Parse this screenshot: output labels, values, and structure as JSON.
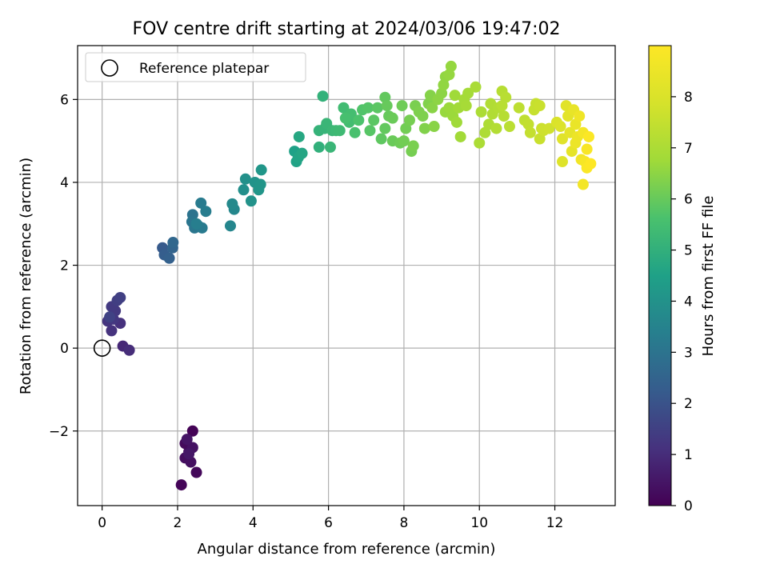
{
  "chart_data": {
    "type": "scatter",
    "title": "FOV centre drift starting at 2024/03/06 19:47:02",
    "xlabel": "Angular distance from reference (arcmin)",
    "ylabel": "Rotation from reference (arcmin)",
    "xlim": [
      -0.65,
      13.6
    ],
    "ylim": [
      -3.8,
      7.3
    ],
    "xticks": [
      0,
      2,
      4,
      6,
      8,
      10,
      12
    ],
    "yticks": [
      -2,
      0,
      2,
      4,
      6
    ],
    "grid": true,
    "legend": {
      "position": "top-left",
      "entries": [
        "Reference platepar"
      ]
    },
    "reference_point": {
      "x": 0,
      "y": 0
    },
    "colorbar": {
      "label": "Hours from first FF file",
      "min": 0,
      "max": 9,
      "ticks": [
        0,
        1,
        2,
        3,
        4,
        5,
        6,
        7,
        8
      ],
      "colormap": "viridis"
    },
    "points": [
      {
        "x": 2.4,
        "y": -2.0,
        "c": 0.05
      },
      {
        "x": 2.1,
        "y": -3.3,
        "c": 0.1
      },
      {
        "x": 2.5,
        "y": -3.0,
        "c": 0.15
      },
      {
        "x": 2.2,
        "y": -2.3,
        "c": 0.2
      },
      {
        "x": 2.3,
        "y": -2.5,
        "c": 0.25
      },
      {
        "x": 2.2,
        "y": -2.65,
        "c": 0.3
      },
      {
        "x": 2.35,
        "y": -2.75,
        "c": 0.35
      },
      {
        "x": 2.4,
        "y": -2.4,
        "c": 0.4
      },
      {
        "x": 2.25,
        "y": -2.2,
        "c": 0.45
      },
      {
        "x": 2.3,
        "y": -2.55,
        "c": 0.5
      },
      {
        "x": 0.55,
        "y": 0.05,
        "c": 0.9
      },
      {
        "x": 0.72,
        "y": -0.05,
        "c": 1.0
      },
      {
        "x": 0.48,
        "y": 0.6,
        "c": 1.1
      },
      {
        "x": 0.25,
        "y": 0.42,
        "c": 1.15
      },
      {
        "x": 0.15,
        "y": 0.65,
        "c": 1.2
      },
      {
        "x": 0.3,
        "y": 0.7,
        "c": 1.25
      },
      {
        "x": 0.35,
        "y": 0.9,
        "c": 1.3
      },
      {
        "x": 0.25,
        "y": 1.0,
        "c": 1.35
      },
      {
        "x": 0.4,
        "y": 1.15,
        "c": 1.45
      },
      {
        "x": 0.48,
        "y": 1.22,
        "c": 1.5
      },
      {
        "x": 0.2,
        "y": 0.75,
        "c": 1.55
      },
      {
        "x": 1.6,
        "y": 2.42,
        "c": 2.2
      },
      {
        "x": 1.65,
        "y": 2.25,
        "c": 2.3
      },
      {
        "x": 1.78,
        "y": 2.17,
        "c": 2.4
      },
      {
        "x": 1.87,
        "y": 2.42,
        "c": 2.5
      },
      {
        "x": 1.88,
        "y": 2.55,
        "c": 2.6
      },
      {
        "x": 2.4,
        "y": 3.22,
        "c": 3.0
      },
      {
        "x": 2.38,
        "y": 3.05,
        "c": 3.05
      },
      {
        "x": 2.45,
        "y": 2.9,
        "c": 3.1
      },
      {
        "x": 2.55,
        "y": 2.95,
        "c": 3.15
      },
      {
        "x": 2.65,
        "y": 2.9,
        "c": 3.2
      },
      {
        "x": 2.62,
        "y": 3.5,
        "c": 3.25
      },
      {
        "x": 2.75,
        "y": 3.3,
        "c": 3.3
      },
      {
        "x": 2.5,
        "y": 3.0,
        "c": 3.35
      },
      {
        "x": 3.4,
        "y": 2.95,
        "c": 3.6
      },
      {
        "x": 3.5,
        "y": 3.35,
        "c": 3.65
      },
      {
        "x": 3.45,
        "y": 3.48,
        "c": 3.7
      },
      {
        "x": 3.75,
        "y": 3.82,
        "c": 3.9
      },
      {
        "x": 3.8,
        "y": 4.08,
        "c": 3.95
      },
      {
        "x": 3.95,
        "y": 3.55,
        "c": 4.0
      },
      {
        "x": 4.05,
        "y": 4.0,
        "c": 4.05
      },
      {
        "x": 4.15,
        "y": 3.82,
        "c": 4.1
      },
      {
        "x": 4.2,
        "y": 3.95,
        "c": 4.1
      },
      {
        "x": 4.22,
        "y": 4.3,
        "c": 4.15
      },
      {
        "x": 5.1,
        "y": 4.75,
        "c": 4.5
      },
      {
        "x": 5.15,
        "y": 4.5,
        "c": 4.55
      },
      {
        "x": 5.2,
        "y": 4.6,
        "c": 4.6
      },
      {
        "x": 5.3,
        "y": 4.7,
        "c": 4.65
      },
      {
        "x": 5.22,
        "y": 5.1,
        "c": 4.7
      },
      {
        "x": 5.75,
        "y": 4.85,
        "c": 5.0
      },
      {
        "x": 5.85,
        "y": 6.08,
        "c": 5.05
      },
      {
        "x": 5.75,
        "y": 5.25,
        "c": 5.1
      },
      {
        "x": 5.9,
        "y": 5.3,
        "c": 5.15
      },
      {
        "x": 6.05,
        "y": 4.85,
        "c": 5.2
      },
      {
        "x": 5.95,
        "y": 5.42,
        "c": 5.2
      },
      {
        "x": 6.1,
        "y": 5.25,
        "c": 5.25
      },
      {
        "x": 6.2,
        "y": 5.25,
        "c": 5.3
      },
      {
        "x": 6.3,
        "y": 5.25,
        "c": 5.35
      },
      {
        "x": 6.4,
        "y": 5.8,
        "c": 5.4
      },
      {
        "x": 6.55,
        "y": 5.45,
        "c": 5.45
      },
      {
        "x": 6.6,
        "y": 5.65,
        "c": 5.5
      },
      {
        "x": 6.45,
        "y": 5.55,
        "c": 5.55
      },
      {
        "x": 6.7,
        "y": 5.2,
        "c": 5.6
      },
      {
        "x": 6.8,
        "y": 5.5,
        "c": 5.65
      },
      {
        "x": 6.9,
        "y": 5.75,
        "c": 5.7
      },
      {
        "x": 7.05,
        "y": 5.8,
        "c": 5.75
      },
      {
        "x": 7.1,
        "y": 5.25,
        "c": 5.8
      },
      {
        "x": 7.2,
        "y": 5.5,
        "c": 5.85
      },
      {
        "x": 7.3,
        "y": 5.8,
        "c": 5.85
      },
      {
        "x": 7.4,
        "y": 5.05,
        "c": 5.9
      },
      {
        "x": 7.5,
        "y": 5.3,
        "c": 5.95
      },
      {
        "x": 7.5,
        "y": 6.05,
        "c": 5.95
      },
      {
        "x": 7.55,
        "y": 5.85,
        "c": 6.0
      },
      {
        "x": 7.6,
        "y": 5.6,
        "c": 6.0
      },
      {
        "x": 7.7,
        "y": 5.55,
        "c": 6.05
      },
      {
        "x": 7.7,
        "y": 5.0,
        "c": 6.05
      },
      {
        "x": 7.9,
        "y": 4.95,
        "c": 6.1
      },
      {
        "x": 7.95,
        "y": 5.85,
        "c": 6.1
      },
      {
        "x": 8.05,
        "y": 5.3,
        "c": 6.15
      },
      {
        "x": 8.0,
        "y": 5.0,
        "c": 6.15
      },
      {
        "x": 8.15,
        "y": 5.5,
        "c": 6.2
      },
      {
        "x": 8.2,
        "y": 4.75,
        "c": 6.2
      },
      {
        "x": 8.25,
        "y": 4.88,
        "c": 6.25
      },
      {
        "x": 8.3,
        "y": 5.85,
        "c": 6.25
      },
      {
        "x": 8.4,
        "y": 5.7,
        "c": 6.3
      },
      {
        "x": 8.5,
        "y": 5.6,
        "c": 6.3
      },
      {
        "x": 8.55,
        "y": 5.3,
        "c": 6.35
      },
      {
        "x": 8.65,
        "y": 5.9,
        "c": 6.35
      },
      {
        "x": 8.7,
        "y": 6.1,
        "c": 6.4
      },
      {
        "x": 8.8,
        "y": 5.35,
        "c": 6.45
      },
      {
        "x": 8.75,
        "y": 5.8,
        "c": 6.45
      },
      {
        "x": 8.9,
        "y": 6.0,
        "c": 6.5
      },
      {
        "x": 9.0,
        "y": 6.15,
        "c": 6.5
      },
      {
        "x": 9.05,
        "y": 6.35,
        "c": 6.55
      },
      {
        "x": 9.1,
        "y": 6.55,
        "c": 6.55
      },
      {
        "x": 9.2,
        "y": 6.6,
        "c": 6.6
      },
      {
        "x": 9.25,
        "y": 6.8,
        "c": 6.6
      },
      {
        "x": 9.1,
        "y": 5.7,
        "c": 6.65
      },
      {
        "x": 9.2,
        "y": 5.8,
        "c": 6.7
      },
      {
        "x": 9.3,
        "y": 5.6,
        "c": 6.7
      },
      {
        "x": 9.35,
        "y": 6.1,
        "c": 6.75
      },
      {
        "x": 9.4,
        "y": 5.45,
        "c": 6.75
      },
      {
        "x": 9.45,
        "y": 5.8,
        "c": 6.8
      },
      {
        "x": 9.5,
        "y": 5.1,
        "c": 6.8
      },
      {
        "x": 9.6,
        "y": 6.0,
        "c": 6.85
      },
      {
        "x": 9.7,
        "y": 6.15,
        "c": 6.85
      },
      {
        "x": 9.65,
        "y": 5.85,
        "c": 6.9
      },
      {
        "x": 9.9,
        "y": 6.3,
        "c": 6.95
      },
      {
        "x": 10.0,
        "y": 4.95,
        "c": 7.0
      },
      {
        "x": 10.05,
        "y": 5.7,
        "c": 7.0
      },
      {
        "x": 10.15,
        "y": 5.2,
        "c": 7.05
      },
      {
        "x": 10.25,
        "y": 5.4,
        "c": 7.05
      },
      {
        "x": 10.3,
        "y": 5.9,
        "c": 7.1
      },
      {
        "x": 10.35,
        "y": 5.65,
        "c": 7.1
      },
      {
        "x": 10.45,
        "y": 5.3,
        "c": 7.15
      },
      {
        "x": 10.5,
        "y": 5.8,
        "c": 7.15
      },
      {
        "x": 10.6,
        "y": 6.2,
        "c": 7.2
      },
      {
        "x": 10.65,
        "y": 5.6,
        "c": 7.2
      },
      {
        "x": 10.7,
        "y": 6.05,
        "c": 7.25
      },
      {
        "x": 10.6,
        "y": 5.85,
        "c": 7.25
      },
      {
        "x": 10.8,
        "y": 5.35,
        "c": 7.3
      },
      {
        "x": 11.05,
        "y": 5.8,
        "c": 7.35
      },
      {
        "x": 11.2,
        "y": 5.5,
        "c": 7.4
      },
      {
        "x": 11.3,
        "y": 5.4,
        "c": 7.45
      },
      {
        "x": 11.35,
        "y": 5.2,
        "c": 7.5
      },
      {
        "x": 11.45,
        "y": 5.75,
        "c": 7.55
      },
      {
        "x": 11.5,
        "y": 5.9,
        "c": 7.55
      },
      {
        "x": 11.6,
        "y": 5.05,
        "c": 7.6
      },
      {
        "x": 11.6,
        "y": 5.85,
        "c": 7.6
      },
      {
        "x": 11.65,
        "y": 5.3,
        "c": 7.65
      },
      {
        "x": 11.7,
        "y": 5.25,
        "c": 7.7
      },
      {
        "x": 11.85,
        "y": 5.3,
        "c": 7.75
      },
      {
        "x": 12.05,
        "y": 5.45,
        "c": 8.0
      },
      {
        "x": 12.15,
        "y": 5.35,
        "c": 8.05
      },
      {
        "x": 12.2,
        "y": 4.5,
        "c": 8.1
      },
      {
        "x": 12.2,
        "y": 5.05,
        "c": 8.15
      },
      {
        "x": 12.3,
        "y": 5.85,
        "c": 8.2
      },
      {
        "x": 12.35,
        "y": 5.6,
        "c": 8.25
      },
      {
        "x": 12.4,
        "y": 5.2,
        "c": 8.3
      },
      {
        "x": 12.45,
        "y": 4.75,
        "c": 8.35
      },
      {
        "x": 12.5,
        "y": 5.75,
        "c": 8.4
      },
      {
        "x": 12.55,
        "y": 5.4,
        "c": 8.45
      },
      {
        "x": 12.55,
        "y": 4.95,
        "c": 8.5
      },
      {
        "x": 12.6,
        "y": 5.1,
        "c": 8.55
      },
      {
        "x": 12.65,
        "y": 5.6,
        "c": 8.6
      },
      {
        "x": 12.7,
        "y": 4.55,
        "c": 8.65
      },
      {
        "x": 12.75,
        "y": 3.95,
        "c": 8.7
      },
      {
        "x": 12.75,
        "y": 5.2,
        "c": 8.75
      },
      {
        "x": 12.8,
        "y": 4.5,
        "c": 8.8
      },
      {
        "x": 12.85,
        "y": 4.8,
        "c": 8.85
      },
      {
        "x": 12.85,
        "y": 4.35,
        "c": 8.9
      },
      {
        "x": 12.9,
        "y": 5.1,
        "c": 8.95
      },
      {
        "x": 12.95,
        "y": 4.45,
        "c": 9.0
      }
    ]
  }
}
